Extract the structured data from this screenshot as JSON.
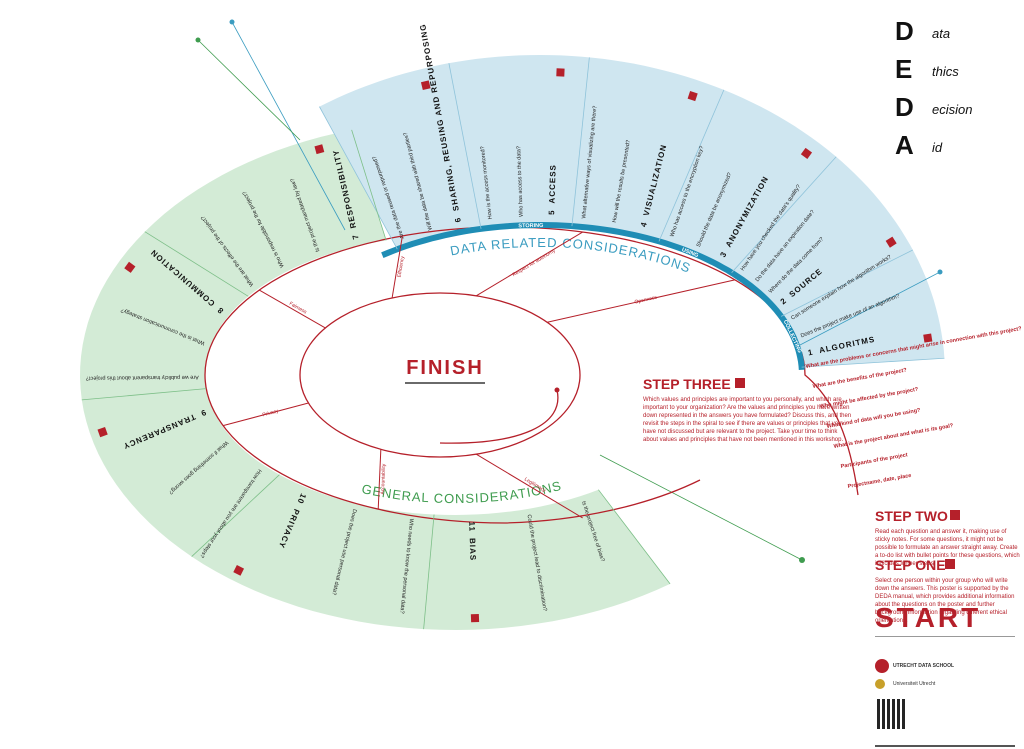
{
  "logo": [
    {
      "letter": "D",
      "word": "ata"
    },
    {
      "letter": "E",
      "word": "thics"
    },
    {
      "letter": "D",
      "word": "ecision"
    },
    {
      "letter": "A",
      "word": "id"
    }
  ],
  "data_related": {
    "label": "DATA RELATED CONSIDERATIONS",
    "phases": [
      "STORING",
      "USING",
      "COLLECTING"
    ],
    "sections": [
      {
        "number": "1",
        "title": "ALGORITMS",
        "questions": [
          "Does the project make use of an algorithm?",
          "Can someone explain how the algorithm works?"
        ]
      },
      {
        "number": "2",
        "title": "SOURCE",
        "questions": [
          "Where do the data come from?",
          "Do the data have an expiration date?",
          "How have you checked the data's quality?"
        ]
      },
      {
        "number": "3",
        "title": "ANONYMIZATION",
        "questions": [
          "Should the data be anonymized?",
          "Who has access to the encryption key?"
        ]
      },
      {
        "number": "4",
        "title": "VISUALIZATION",
        "questions": [
          "How will the results be presented?",
          "What alternative ways of visualizing are there?"
        ]
      },
      {
        "number": "5",
        "title": "ACCESS",
        "questions": [
          "Who has access to the data?",
          "How is the access monitored?"
        ]
      },
      {
        "number": "6",
        "title": "SHARING, REUSING AND REPURPOSING",
        "questions": [
          "Will the data be shared with third parties?",
          "Are the data reused or repurposed?"
        ]
      }
    ]
  },
  "general": {
    "label": "GENERAL CONSIDERATIONS",
    "sections": [
      {
        "number": "7",
        "title": "RESPONSIBILITY",
        "questions": [
          "Is the project mandated by law?",
          "Who is responsible for the project?",
          "What are the effects of the project?"
        ]
      },
      {
        "number": "8",
        "title": "COMMUNICATION",
        "questions": [
          "What is the communication strategy?",
          "Are we publicly transparent about this project?"
        ]
      },
      {
        "number": "9",
        "title": "TRANSPARENCY",
        "questions": [
          "What if something goes wrong?",
          "How transparent are you about your steps?"
        ]
      },
      {
        "number": "10",
        "title": "PRIVACY",
        "questions": [
          "Does the project use personal data?",
          "Who needs to know the personal data?"
        ]
      },
      {
        "number": "11",
        "title": "BIAS",
        "questions": [
          "Could the project lead to discrimination?",
          "Is the project free of bias?"
        ]
      }
    ]
  },
  "center": {
    "title": "FINISH",
    "values": [
      "Fairness",
      "Efficiency",
      "Respect for autonomy",
      "Openness",
      "Legitimacy",
      "Accountability",
      "Privacy"
    ]
  },
  "spiral_questions": [
    "What are the problems or concerns that might arise in connection with this project?",
    "What are the benefits of the project?",
    "Who might be affected by the project?",
    "What kind of data will you be using?",
    "What is the project about and what is its goal?",
    "Participants of the project",
    "Projectname, date, place"
  ],
  "steps": [
    {
      "title": "STEP THREE",
      "text": "Which values and principles are important to you personally, and which are important to your organization? Are the values and principles you have written down represented in the answers you have formulated? Discuss this, and then revisit the steps in the spiral to see if there are values or principles that you have not discussed but are relevant to the project. Take your time to think about values and principles that have not been mentioned in this workshop."
    },
    {
      "title": "STEP TWO",
      "text": "Read each question and answer it, making use of sticky notes. For some questions, it might not be possible to formulate an answer straight away. Create a to-do list with bullet points for these questions, which indicates further steps."
    },
    {
      "title": "STEP ONE",
      "text": "Select one person within your group who will write down the answers. This poster is supported by the DEDA manual, which provides additional information about the questions on the poster and further background information regarding different ethical orientations."
    }
  ],
  "start": "START",
  "footer": [
    "UTRECHT DATA SCHOOL",
    "Universiteit Utrecht"
  ]
}
